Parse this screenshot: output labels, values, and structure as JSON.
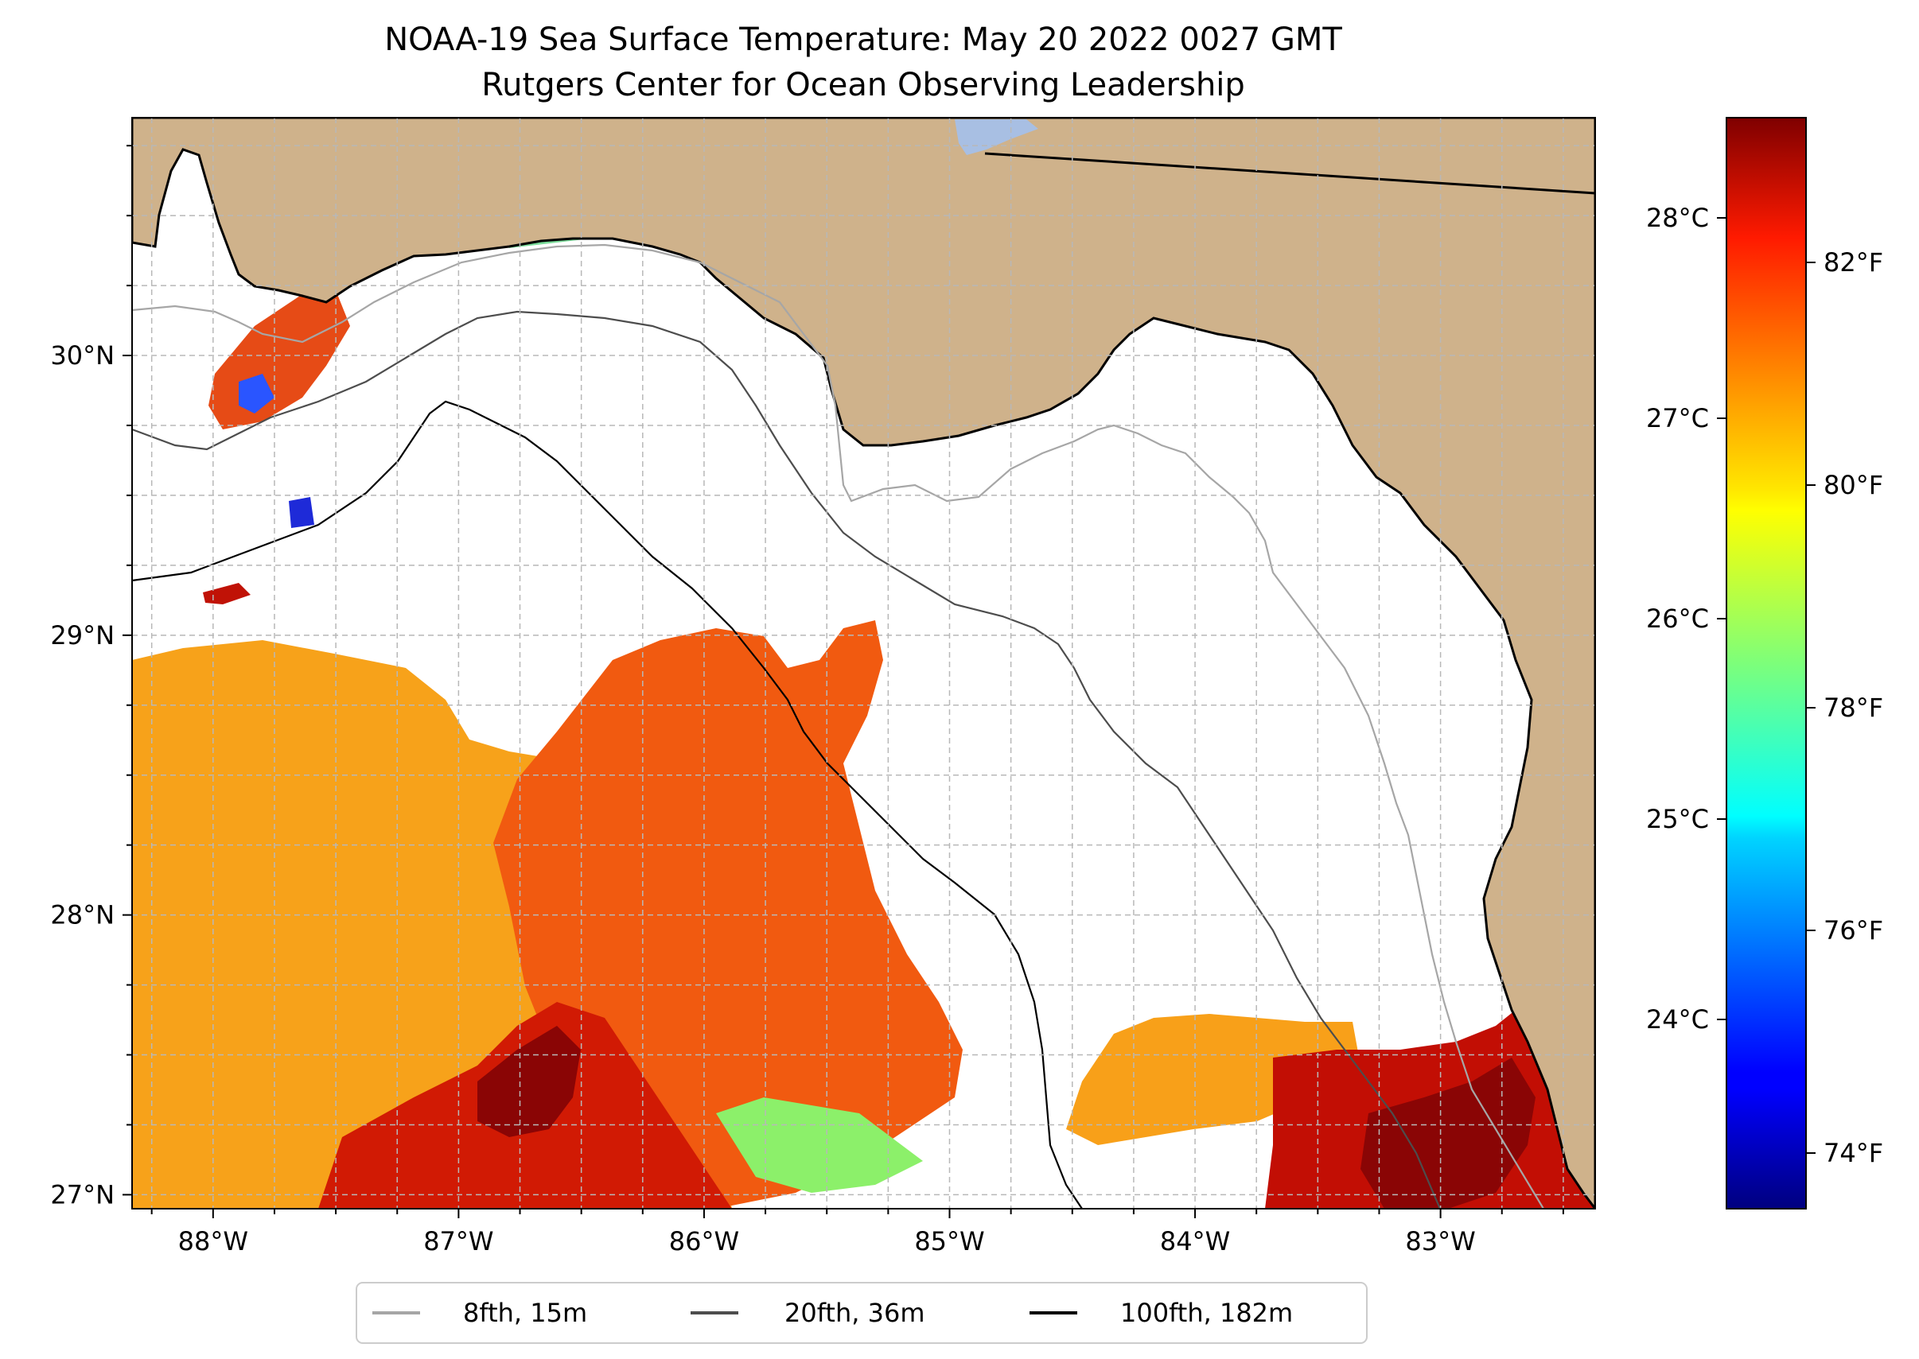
{
  "title": {
    "line1": "NOAA-19 Sea Surface Temperature: May 20 2022 0027 GMT",
    "line2": "Rutgers Center for Ocean Observing Leadership"
  },
  "map": {
    "projection": "PlateCarree",
    "lon_range": [
      -88.33,
      -82.37
    ],
    "lat_range": [
      26.95,
      30.85
    ],
    "lon_ticks": [
      {
        "value": -88,
        "label": "88°W"
      },
      {
        "value": -87,
        "label": "87°W"
      },
      {
        "value": -86,
        "label": "86°W"
      },
      {
        "value": -85,
        "label": "85°W"
      },
      {
        "value": -84,
        "label": "84°W"
      },
      {
        "value": -83,
        "label": "83°W"
      }
    ],
    "lat_ticks": [
      {
        "value": 27,
        "label": "27°N"
      },
      {
        "value": 28,
        "label": "28°N"
      },
      {
        "value": 29,
        "label": "29°N"
      },
      {
        "value": 30,
        "label": "30°N"
      }
    ],
    "gridlines": true,
    "land_color": "#cfb28b",
    "lake_color": "#a8bfe3",
    "ocean_color": "#ffffff"
  },
  "legend": {
    "placement": "bottom-center",
    "entries": [
      {
        "label": "8fth, 15m",
        "color": "#a6a6a6"
      },
      {
        "label": "20fth, 36m",
        "color": "#4d4d4d"
      },
      {
        "label": "100fth, 182m",
        "color": "#000000"
      }
    ]
  },
  "colorbar": {
    "colormap": "jet",
    "range_f": [
      73.5,
      83.3
    ],
    "celsius_ticks": [
      {
        "value": 24,
        "label": "24°C"
      },
      {
        "value": 25,
        "label": "25°C"
      },
      {
        "value": 26,
        "label": "26°C"
      },
      {
        "value": 27,
        "label": "27°C"
      },
      {
        "value": 28,
        "label": "28°C"
      }
    ],
    "fahrenheit_ticks": [
      {
        "value": 74,
        "label": "74°F"
      },
      {
        "value": 76,
        "label": "76°F"
      },
      {
        "value": 78,
        "label": "78°F"
      },
      {
        "value": 80,
        "label": "80°F"
      },
      {
        "value": 82,
        "label": "82°F"
      }
    ]
  }
}
